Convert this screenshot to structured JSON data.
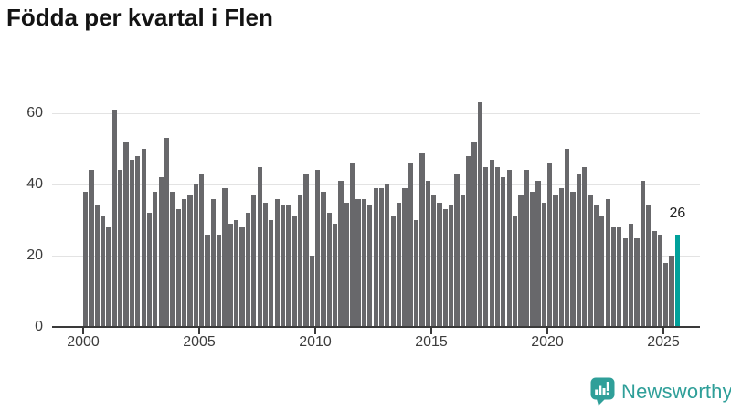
{
  "title": "Födda per kvartal i Flen",
  "chart_data": {
    "type": "bar",
    "title": "Födda per kvartal i Flen",
    "x_unit": "quarter",
    "first_period": "2000 Q1",
    "last_period": "2025 Q3",
    "x_tick_labels": [
      "2000",
      "2005",
      "2010",
      "2015",
      "2020",
      "2025"
    ],
    "y_ticks": [
      0,
      20,
      40,
      60
    ],
    "y_tick_labels": [
      "0",
      "20",
      "40",
      "60"
    ],
    "ylim": [
      0,
      65
    ],
    "grid": "horizontal",
    "legend": "none",
    "bar_color": "#68686b",
    "highlight_color": "#00a19b",
    "highlight_index": 102,
    "highlight_label": "26",
    "values": [
      38,
      44,
      34,
      31,
      28,
      61,
      44,
      52,
      47,
      48,
      50,
      32,
      38,
      42,
      53,
      38,
      33,
      36,
      37,
      40,
      43,
      26,
      36,
      26,
      39,
      29,
      30,
      28,
      32,
      37,
      45,
      35,
      30,
      36,
      34,
      34,
      31,
      37,
      43,
      20,
      44,
      38,
      32,
      29,
      41,
      35,
      46,
      36,
      36,
      34,
      39,
      39,
      40,
      31,
      35,
      39,
      46,
      30,
      49,
      41,
      37,
      35,
      33,
      34,
      43,
      37,
      48,
      52,
      63,
      45,
      47,
      45,
      42,
      44,
      31,
      37,
      44,
      38,
      41,
      35,
      46,
      37,
      39,
      50,
      38,
      43,
      45,
      37,
      34,
      31,
      36,
      28,
      28,
      25,
      29,
      25,
      41,
      34,
      27,
      26,
      18,
      20,
      26
    ]
  },
  "logo": {
    "text": "Newsworthy",
    "color": "#2f9f99",
    "icon": "newsworthy-chart-bubble-icon"
  }
}
